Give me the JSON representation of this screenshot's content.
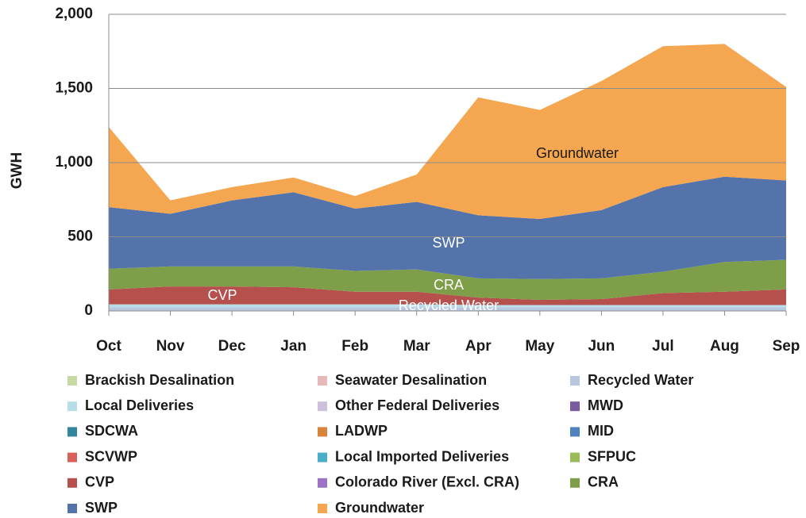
{
  "chart_data": {
    "type": "stacked_area",
    "y_label": "GWH",
    "categories": [
      "Oct",
      "Nov",
      "Dec",
      "Jan",
      "Feb",
      "Mar",
      "Apr",
      "May",
      "Jun",
      "Jul",
      "Aug",
      "Sep"
    ],
    "ylim": [
      0,
      2000
    ],
    "yticks": [
      0,
      500,
      {
        "value": 1000,
        "label": "1,000"
      },
      {
        "value": 1500,
        "label": "1,500"
      },
      {
        "value": 2000,
        "label": "2,000"
      }
    ],
    "grid": true,
    "series": [
      {
        "name": "Brackish Desalination",
        "color": "#c4d9a4",
        "values": [
          0,
          0,
          0,
          0,
          0,
          0,
          0,
          0,
          0,
          0,
          0,
          0
        ]
      },
      {
        "name": "Seawater Desalination",
        "color": "#e6b8b7",
        "values": [
          0,
          0,
          0,
          0,
          0,
          0,
          0,
          0,
          0,
          0,
          0,
          0
        ]
      },
      {
        "name": "Recycled Water",
        "color": "#b8c7e0",
        "values": [
          25,
          25,
          25,
          25,
          25,
          25,
          25,
          25,
          25,
          25,
          25,
          25
        ]
      },
      {
        "name": "Local Deliveries",
        "color": "#b7dde8",
        "values": [
          20,
          20,
          20,
          20,
          20,
          20,
          15,
          15,
          15,
          15,
          15,
          15
        ]
      },
      {
        "name": "Other Federal Deliveries",
        "color": "#ccc0da",
        "values": [
          0,
          0,
          0,
          0,
          0,
          0,
          0,
          0,
          0,
          0,
          0,
          0
        ]
      },
      {
        "name": "MWD",
        "color": "#7a5a9e",
        "values": [
          0,
          0,
          0,
          0,
          0,
          0,
          0,
          0,
          0,
          0,
          0,
          0
        ]
      },
      {
        "name": "SDCWA",
        "color": "#31859c",
        "values": [
          0,
          0,
          0,
          0,
          0,
          0,
          0,
          0,
          0,
          0,
          0,
          0
        ]
      },
      {
        "name": "LADWP",
        "color": "#d9843b",
        "values": [
          0,
          0,
          0,
          0,
          0,
          0,
          0,
          0,
          0,
          0,
          0,
          0
        ]
      },
      {
        "name": "MID",
        "color": "#4f81bd",
        "values": [
          0,
          0,
          0,
          0,
          0,
          0,
          0,
          0,
          0,
          0,
          0,
          0
        ]
      },
      {
        "name": "SCVWP",
        "color": "#d9605a",
        "values": [
          0,
          0,
          0,
          0,
          0,
          0,
          0,
          0,
          0,
          0,
          0,
          0
        ]
      },
      {
        "name": "Local Imported  Deliveries",
        "color": "#4bacc6",
        "values": [
          0,
          0,
          0,
          0,
          0,
          0,
          0,
          0,
          0,
          0,
          0,
          0
        ]
      },
      {
        "name": "SFPUC",
        "color": "#9bbb59",
        "values": [
          0,
          0,
          0,
          0,
          0,
          0,
          0,
          0,
          0,
          0,
          0,
          0
        ]
      },
      {
        "name": "CVP",
        "color": "#b5504d",
        "values": [
          100,
          120,
          120,
          115,
          85,
          85,
          50,
          35,
          40,
          80,
          90,
          105
        ]
      },
      {
        "name": "Colorado River (Excl. CRA)",
        "color": "#9b72c4",
        "values": [
          0,
          0,
          0,
          0,
          0,
          0,
          0,
          0,
          0,
          0,
          0,
          0
        ]
      },
      {
        "name": "CRA",
        "color": "#7f9e49",
        "values": [
          140,
          135,
          135,
          140,
          140,
          150,
          130,
          140,
          140,
          145,
          200,
          200
        ]
      },
      {
        "name": "SWP",
        "color": "#5373aa",
        "values": [
          415,
          355,
          445,
          500,
          420,
          455,
          425,
          405,
          460,
          570,
          575,
          535
        ]
      },
      {
        "name": "Groundwater",
        "color": "#f5a650",
        "values": [
          540,
          90,
          90,
          100,
          85,
          185,
          795,
          735,
          870,
          950,
          895,
          630
        ]
      }
    ],
    "annotations": [
      "Groundwater",
      "SWP",
      "CRA",
      "CVP",
      "Recycled Water"
    ]
  }
}
